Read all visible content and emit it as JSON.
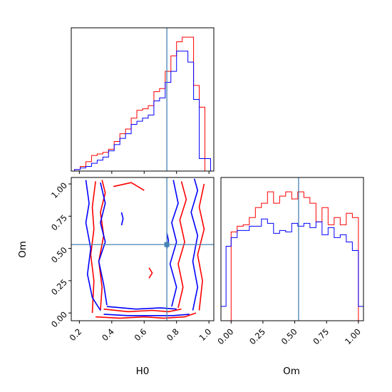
{
  "chart_data": [
    {
      "panel": "H0 marginal",
      "type": "histogram",
      "xlim": [
        0.15,
        1.03
      ],
      "x_ticks": [
        0.2,
        0.4,
        0.6,
        0.8,
        1.0
      ],
      "truth_x": 0.74,
      "series": [
        {
          "color": "#ff0000",
          "bin_edges": [
            0.17,
            0.205,
            0.24,
            0.275,
            0.31,
            0.345,
            0.38,
            0.415,
            0.45,
            0.485,
            0.52,
            0.555,
            0.59,
            0.625,
            0.66,
            0.695,
            0.73,
            0.765,
            0.8,
            0.835,
            0.87,
            0.905,
            0.94,
            0.975,
            1.01
          ],
          "counts": [
            0.01,
            0.03,
            0.06,
            0.1,
            0.11,
            0.12,
            0.14,
            0.19,
            0.24,
            0.27,
            0.34,
            0.39,
            0.4,
            0.42,
            0.51,
            0.53,
            0.64,
            0.74,
            0.83,
            0.86,
            0.86,
            0.55,
            0.41,
            0.0
          ]
        },
        {
          "color": "#0000ff",
          "bin_edges": [
            0.17,
            0.205,
            0.24,
            0.275,
            0.31,
            0.345,
            0.38,
            0.415,
            0.45,
            0.485,
            0.52,
            0.555,
            0.59,
            0.625,
            0.66,
            0.695,
            0.73,
            0.765,
            0.8,
            0.835,
            0.87,
            0.905,
            0.94,
            0.975,
            1.01
          ],
          "counts": [
            0.01,
            0.02,
            0.03,
            0.05,
            0.07,
            0.09,
            0.13,
            0.17,
            0.21,
            0.24,
            0.3,
            0.32,
            0.34,
            0.36,
            0.45,
            0.47,
            0.57,
            0.64,
            0.77,
            0.77,
            0.7,
            0.46,
            0.08,
            0.08
          ]
        }
      ]
    },
    {
      "panel": "Om marginal",
      "type": "histogram",
      "xlabel": "Om",
      "xlim": [
        -0.08,
        1.04
      ],
      "x_ticks": [
        "0.00",
        "0.25",
        "0.50",
        "0.75",
        "1.00"
      ],
      "truth_x": 0.53,
      "series": [
        {
          "color": "#ff0000",
          "bin_edges": [
            0.0,
            0.0476,
            0.0952,
            0.1429,
            0.1905,
            0.2381,
            0.2857,
            0.3333,
            0.381,
            0.4286,
            0.4762,
            0.5238,
            0.5714,
            0.619,
            0.6667,
            0.7143,
            0.7619,
            0.8095,
            0.8571,
            0.9048,
            0.9524,
            1.0
          ],
          "counts": [
            0.62,
            0.66,
            0.67,
            0.72,
            0.79,
            0.82,
            0.9,
            0.82,
            0.87,
            0.9,
            0.85,
            0.9,
            0.86,
            0.82,
            0.69,
            0.79,
            0.67,
            0.72,
            0.67,
            0.75,
            0.72
          ]
        },
        {
          "color": "#0000ff",
          "bin_edges": [
            -0.08,
            -0.04,
            0.0,
            0.0476,
            0.0952,
            0.1429,
            0.1905,
            0.2381,
            0.2857,
            0.3333,
            0.381,
            0.4286,
            0.4762,
            0.5238,
            0.5714,
            0.619,
            0.6667,
            0.7143,
            0.7619,
            0.8095,
            0.8571,
            0.9048,
            0.9524,
            1.0,
            1.04
          ],
          "counts": [
            0.1,
            0.52,
            0.58,
            0.63,
            0.63,
            0.66,
            0.66,
            0.71,
            0.68,
            0.61,
            0.63,
            0.62,
            0.68,
            0.66,
            0.68,
            0.65,
            0.69,
            0.6,
            0.65,
            0.58,
            0.6,
            0.55,
            0.49,
            0.1
          ]
        }
      ]
    },
    {
      "panel": "H0 vs Om joint",
      "type": "contour",
      "xlabel": "H0",
      "ylabel": "Om",
      "xlim": [
        0.15,
        1.03
      ],
      "ylim": [
        -0.06,
        1.05
      ],
      "x_ticks": [
        0.2,
        0.4,
        0.6,
        0.8,
        1.0
      ],
      "y_ticks": [
        "0.00",
        "0.25",
        "0.50",
        "0.75",
        "1.00"
      ],
      "truth": [
        0.74,
        0.53
      ],
      "series": [
        {
          "color": "#ff0000",
          "contours": [
            [
              [
                0.28,
                0.0
              ],
              [
                0.29,
                0.25
              ],
              [
                0.27,
                0.45
              ],
              [
                0.29,
                0.65
              ],
              [
                0.28,
                0.82
              ],
              [
                0.3,
                1.02
              ]
            ],
            [
              [
                0.33,
                0.02
              ],
              [
                0.34,
                0.2
              ],
              [
                0.32,
                0.4
              ],
              [
                0.35,
                0.6
              ],
              [
                0.33,
                0.78
              ],
              [
                0.36,
                0.93
              ],
              [
                0.34,
                1.03
              ]
            ],
            [
              [
                0.3,
                -0.03
              ],
              [
                0.45,
                -0.04
              ],
              [
                0.6,
                -0.03
              ],
              [
                0.72,
                -0.04
              ],
              [
                0.85,
                -0.03
              ],
              [
                0.92,
                0.0
              ]
            ],
            [
              [
                0.35,
                0.03
              ],
              [
                0.5,
                0.01
              ],
              [
                0.65,
                0.02
              ],
              [
                0.75,
                0.01
              ],
              [
                0.83,
                0.03
              ]
            ],
            [
              [
                0.81,
                0.04
              ],
              [
                0.84,
                0.2
              ],
              [
                0.81,
                0.38
              ],
              [
                0.85,
                0.55
              ],
              [
                0.82,
                0.72
              ],
              [
                0.86,
                0.88
              ],
              [
                0.83,
                1.02
              ]
            ],
            [
              [
                0.94,
                0.02
              ],
              [
                0.96,
                0.25
              ],
              [
                0.93,
                0.45
              ],
              [
                0.97,
                0.65
              ],
              [
                0.94,
                0.82
              ],
              [
                0.97,
                1.0
              ]
            ],
            [
              [
                0.41,
                0.98
              ],
              [
                0.52,
                1.01
              ],
              [
                0.6,
                0.95
              ]
            ],
            [
              [
                0.63,
                0.27
              ],
              [
                0.65,
                0.31
              ],
              [
                0.63,
                0.35
              ]
            ]
          ]
        },
        {
          "color": "#0000ff",
          "contours": [
            [
              [
                0.24,
                1.03
              ],
              [
                0.26,
                0.85
              ],
              [
                0.24,
                0.7
              ],
              [
                0.27,
                0.5
              ],
              [
                0.25,
                0.3
              ],
              [
                0.28,
                0.12
              ],
              [
                0.33,
                0.02
              ]
            ],
            [
              [
                0.35,
                -0.01
              ],
              [
                0.5,
                -0.02
              ],
              [
                0.65,
                -0.02
              ],
              [
                0.78,
                -0.02
              ],
              [
                0.88,
                -0.01
              ]
            ],
            [
              [
                0.37,
                0.05
              ],
              [
                0.55,
                0.03
              ],
              [
                0.7,
                0.04
              ],
              [
                0.8,
                0.03
              ]
            ],
            [
              [
                0.33,
                1.01
              ],
              [
                0.36,
                0.85
              ],
              [
                0.33,
                0.7
              ],
              [
                0.36,
                0.55
              ],
              [
                0.32,
                0.4
              ],
              [
                0.35,
                0.22
              ],
              [
                0.37,
                0.06
              ]
            ],
            [
              [
                0.77,
                0.05
              ],
              [
                0.8,
                0.2
              ],
              [
                0.76,
                0.38
              ],
              [
                0.8,
                0.55
              ],
              [
                0.77,
                0.7
              ],
              [
                0.81,
                0.85
              ],
              [
                0.78,
                1.03
              ]
            ],
            [
              [
                0.9,
                0.02
              ],
              [
                0.93,
                0.2
              ],
              [
                0.9,
                0.4
              ],
              [
                0.93,
                0.6
              ],
              [
                0.89,
                0.78
              ],
              [
                0.93,
                0.95
              ],
              [
                0.91,
                1.04
              ]
            ],
            [
              [
                0.46,
                0.78
              ],
              [
                0.47,
                0.73
              ],
              [
                0.46,
                0.68
              ]
            ],
            [
              [
                0.74,
                0.62
              ],
              [
                0.75,
                0.56
              ],
              [
                0.74,
                0.5
              ]
            ]
          ]
        }
      ]
    }
  ],
  "colors": {
    "series_1": "#ff0000",
    "series_2": "#0000ff",
    "truth_line": "#4682b4",
    "axes": "#000000"
  }
}
